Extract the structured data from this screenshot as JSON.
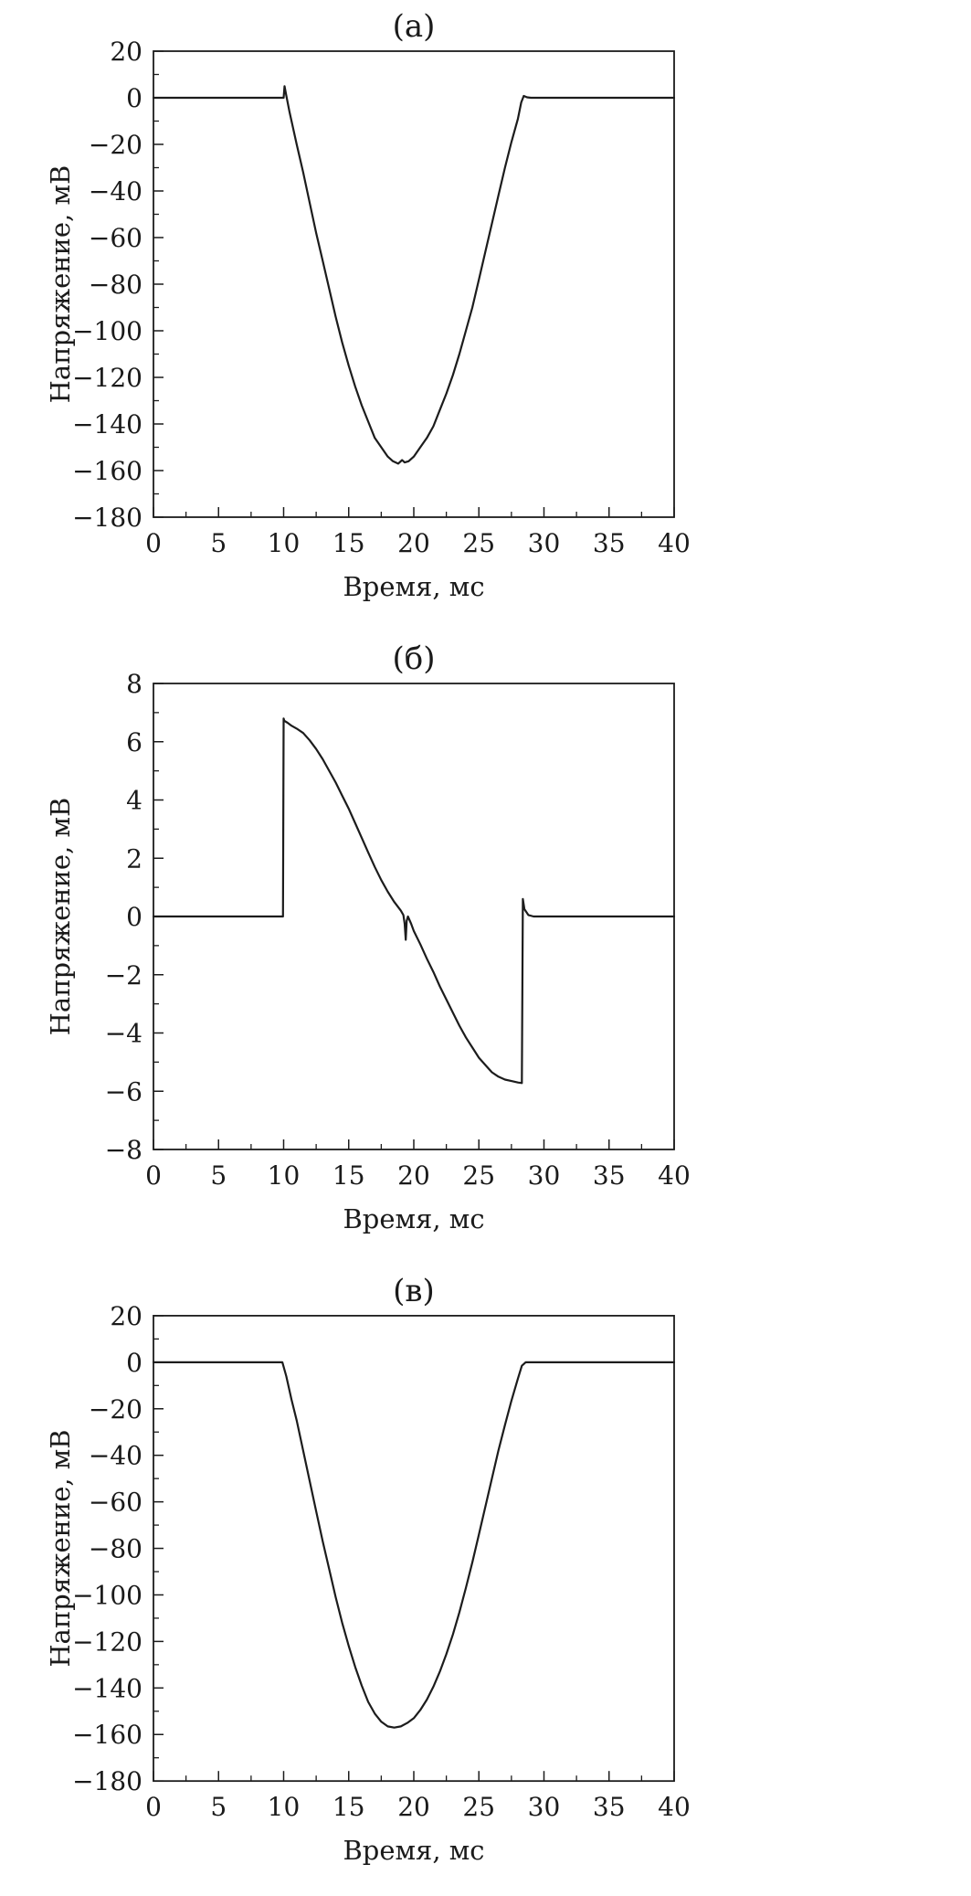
{
  "figure": {
    "background": "#ffffff",
    "line_color": "#1c1c1c",
    "axis_color": "#1c1c1c",
    "text_color": "#1a1a1a"
  },
  "chart_data": [
    {
      "id": "a",
      "type": "line",
      "title": "(а)",
      "xlabel": "Время, мс",
      "ylabel": "Напряжение, мВ",
      "xlim": [
        0,
        40
      ],
      "ylim": [
        -180,
        20
      ],
      "grid": false,
      "xticks": [
        0,
        5,
        10,
        15,
        20,
        25,
        30,
        35,
        40
      ],
      "yticks": [
        20,
        0,
        -20,
        -40,
        -60,
        -80,
        -100,
        -120,
        -140,
        -160,
        -180
      ],
      "xtick_labels": [
        "0",
        "5",
        "10",
        "15",
        "20",
        "25",
        "30",
        "35",
        "40"
      ],
      "ytick_labels": [
        "20",
        "0",
        "−20",
        "−40",
        "−60",
        "−80",
        "−100",
        "−120",
        "−140",
        "−160",
        "−180"
      ],
      "series": [
        {
          "x": [
            0,
            2,
            4,
            6,
            8,
            9.9,
            10.0,
            10.07,
            10.2,
            10.45,
            11,
            11.5,
            12,
            12.5,
            13,
            13.5,
            14,
            14.5,
            15,
            15.5,
            16,
            16.5,
            17,
            17.5,
            18,
            18.4,
            18.8,
            19.1,
            19.3,
            19.6,
            20,
            20.5,
            21,
            21.5,
            22,
            22.5,
            23,
            23.5,
            24,
            24.5,
            25,
            25.5,
            26,
            26.5,
            27,
            27.5,
            28,
            28.25,
            28.45,
            28.7,
            29,
            30,
            32,
            35,
            40
          ],
          "y": [
            0,
            0,
            0,
            0,
            0,
            0,
            0,
            5,
            1,
            -6,
            -20,
            -32,
            -45,
            -58,
            -70,
            -82,
            -94,
            -105,
            -115,
            -124,
            -132,
            -139,
            -146,
            -150,
            -154,
            -156,
            -157,
            -155.5,
            -156.5,
            -156,
            -154,
            -150,
            -146,
            -141,
            -134,
            -127,
            -119,
            -110,
            -100,
            -90,
            -78,
            -66,
            -54,
            -42,
            -30,
            -19,
            -9,
            -2,
            0.8,
            0.2,
            0,
            0,
            0,
            0,
            0
          ]
        }
      ]
    },
    {
      "id": "b",
      "type": "line",
      "title": "(б)",
      "xlabel": "Время, мс",
      "ylabel": "Напряжение, мВ",
      "xlim": [
        0,
        40
      ],
      "ylim": [
        -8,
        8
      ],
      "grid": false,
      "xticks": [
        0,
        5,
        10,
        15,
        20,
        25,
        30,
        35,
        40
      ],
      "yticks": [
        8,
        6,
        4,
        2,
        0,
        -2,
        -4,
        -6,
        -8
      ],
      "xtick_labels": [
        "0",
        "5",
        "10",
        "15",
        "20",
        "25",
        "30",
        "35",
        "40"
      ],
      "ytick_labels": [
        "8",
        "6",
        "4",
        "2",
        "0",
        "−2",
        "−4",
        "−6",
        "−8"
      ],
      "series": [
        {
          "x": [
            0,
            2,
            4,
            6,
            8,
            9.95,
            10.0,
            10.05,
            10.3,
            10.6,
            11,
            11.5,
            12,
            12.5,
            13,
            13.5,
            14,
            14.5,
            15,
            15.5,
            16,
            16.5,
            17,
            17.5,
            18,
            18.5,
            19,
            19.2,
            19.3,
            19.38,
            19.45,
            19.55,
            19.8,
            20,
            20.5,
            21,
            21.5,
            22,
            22.5,
            23,
            23.5,
            24,
            24.5,
            25,
            25.5,
            26,
            26.5,
            27,
            27.5,
            28,
            28.3,
            28.38,
            28.5,
            28.8,
            29.2,
            30,
            32,
            35,
            40
          ],
          "y": [
            0,
            0,
            0,
            0,
            0,
            0,
            6.8,
            6.72,
            6.65,
            6.55,
            6.45,
            6.3,
            6.05,
            5.75,
            5.4,
            5.0,
            4.6,
            4.15,
            3.7,
            3.2,
            2.7,
            2.2,
            1.7,
            1.25,
            0.85,
            0.5,
            0.2,
            0.05,
            -0.25,
            -0.8,
            -0.15,
            0.0,
            -0.25,
            -0.5,
            -0.95,
            -1.45,
            -1.9,
            -2.4,
            -2.85,
            -3.3,
            -3.75,
            -4.15,
            -4.5,
            -4.85,
            -5.1,
            -5.35,
            -5.5,
            -5.6,
            -5.65,
            -5.7,
            -5.72,
            0.6,
            0.25,
            0.05,
            0,
            0,
            0,
            0,
            0
          ]
        }
      ]
    },
    {
      "id": "v",
      "type": "line",
      "title": "(в)",
      "xlabel": "Время, мс",
      "ylabel": "Напряжение, мВ",
      "xlim": [
        0,
        40
      ],
      "ylim": [
        -180,
        20
      ],
      "grid": false,
      "xticks": [
        0,
        5,
        10,
        15,
        20,
        25,
        30,
        35,
        40
      ],
      "yticks": [
        20,
        0,
        -20,
        -40,
        -60,
        -80,
        -100,
        -120,
        -140,
        -160,
        -180
      ],
      "xtick_labels": [
        "0",
        "5",
        "10",
        "15",
        "20",
        "25",
        "30",
        "35",
        "40"
      ],
      "ytick_labels": [
        "20",
        "0",
        "−20",
        "−40",
        "−60",
        "−80",
        "−100",
        "−120",
        "−140",
        "−160",
        "−180"
      ],
      "series": [
        {
          "x": [
            0,
            2,
            4,
            6,
            8,
            9.9,
            10.2,
            10.6,
            11,
            11.5,
            12,
            12.5,
            13,
            13.5,
            14,
            14.5,
            15,
            15.5,
            16,
            16.5,
            17,
            17.5,
            18,
            18.5,
            19,
            19.5,
            20,
            20.5,
            21,
            21.5,
            22,
            22.5,
            23,
            23.5,
            24,
            24.5,
            25,
            25.5,
            26,
            26.5,
            27,
            27.5,
            28,
            28.3,
            28.6,
            29,
            30,
            32,
            35,
            40
          ],
          "y": [
            0,
            0,
            0,
            0,
            0,
            0,
            -6,
            -16,
            -25,
            -38,
            -51,
            -64,
            -77,
            -89,
            -101,
            -112,
            -122,
            -131,
            -139,
            -146,
            -151,
            -154.5,
            -156.5,
            -157,
            -156.5,
            -155,
            -153,
            -149.5,
            -145,
            -139.5,
            -133,
            -125.5,
            -117,
            -107.5,
            -97,
            -86,
            -74,
            -62,
            -50,
            -38,
            -27,
            -16.5,
            -7,
            -1.5,
            0,
            0,
            0,
            0,
            0,
            0
          ]
        }
      ]
    }
  ]
}
